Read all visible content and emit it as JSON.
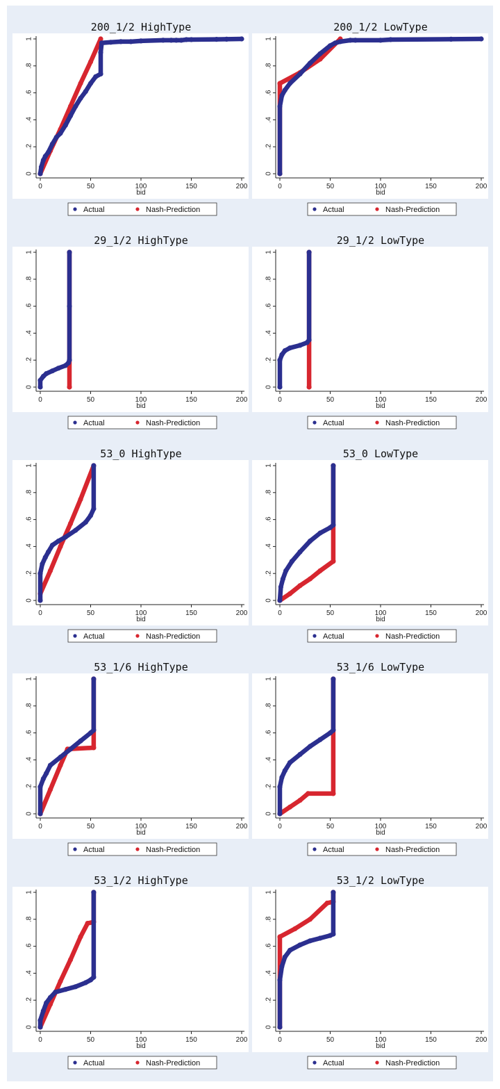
{
  "colors": {
    "actual": "#2b2f8f",
    "nash": "#d7262f",
    "panel_bg": "#ffffff",
    "figure_bg": "#e8eef7"
  },
  "chart_data": [
    {
      "type": "scatter",
      "title": "200_1/2 HighType",
      "xlabel": "bid",
      "xlim": [
        0,
        200
      ],
      "ylim": [
        0,
        1
      ],
      "xticks": [
        0,
        50,
        100,
        150,
        200
      ],
      "yticks": [
        0,
        0.2,
        0.4,
        0.6,
        0.8,
        1
      ],
      "ytick_labels": [
        "0",
        ".2",
        ".4",
        ".6",
        ".8",
        "1"
      ],
      "legend_placement": "bottom",
      "series": [
        {
          "name": "Actual",
          "points": [
            [
              0,
              0
            ],
            [
              1,
              0.05
            ],
            [
              3,
              0.1
            ],
            [
              5,
              0.13
            ],
            [
              8,
              0.16
            ],
            [
              12,
              0.22
            ],
            [
              16,
              0.27
            ],
            [
              20,
              0.3
            ],
            [
              25,
              0.36
            ],
            [
              30,
              0.43
            ],
            [
              35,
              0.5
            ],
            [
              40,
              0.56
            ],
            [
              45,
              0.61
            ],
            [
              50,
              0.67
            ],
            [
              55,
              0.72
            ],
            [
              60,
              0.74
            ],
            [
              60,
              0.9
            ],
            [
              61,
              0.97
            ],
            [
              70,
              0.975
            ],
            [
              80,
              0.98
            ],
            [
              90,
              0.98
            ],
            [
              100,
              0.985
            ],
            [
              122,
              0.99
            ],
            [
              130,
              0.99
            ],
            [
              135,
              0.99
            ],
            [
              140,
              0.99
            ],
            [
              145,
              0.995
            ],
            [
              150,
              0.995
            ],
            [
              175,
              0.997
            ],
            [
              185,
              0.998
            ],
            [
              200,
              1
            ]
          ]
        },
        {
          "name": "Nash-Prediction",
          "points": [
            [
              0,
              0
            ],
            [
              10,
              0.17
            ],
            [
              20,
              0.33
            ],
            [
              30,
              0.5
            ],
            [
              40,
              0.67
            ],
            [
              50,
              0.83
            ],
            [
              60,
              1
            ]
          ]
        }
      ]
    },
    {
      "type": "scatter",
      "title": "200_1/2 LowType",
      "xlabel": "bid",
      "xlim": [
        0,
        200
      ],
      "ylim": [
        0,
        1
      ],
      "xticks": [
        0,
        50,
        100,
        150,
        200
      ],
      "yticks": [
        0,
        0.2,
        0.4,
        0.6,
        0.8,
        1
      ],
      "ytick_labels": [
        "0",
        ".2",
        ".4",
        ".6",
        ".8",
        "1"
      ],
      "legend_placement": "bottom",
      "series": [
        {
          "name": "Actual",
          "points": [
            [
              0,
              0
            ],
            [
              0,
              0.5
            ],
            [
              2,
              0.58
            ],
            [
              5,
              0.62
            ],
            [
              10,
              0.67
            ],
            [
              20,
              0.74
            ],
            [
              30,
              0.82
            ],
            [
              40,
              0.89
            ],
            [
              50,
              0.95
            ],
            [
              55,
              0.97
            ],
            [
              60,
              0.98
            ],
            [
              70,
              0.99
            ],
            [
              75,
              0.99
            ],
            [
              100,
              0.99
            ],
            [
              110,
              0.995
            ],
            [
              170,
              0.998
            ],
            [
              200,
              1
            ]
          ]
        },
        {
          "name": "Nash-Prediction",
          "points": [
            [
              0,
              0
            ],
            [
              0,
              0.67
            ],
            [
              20,
              0.75
            ],
            [
              40,
              0.85
            ],
            [
              60,
              1
            ]
          ]
        }
      ]
    },
    {
      "type": "scatter",
      "title": "29_1/2 HighType",
      "xlabel": "bid",
      "xlim": [
        0,
        200
      ],
      "ylim": [
        0,
        1
      ],
      "xticks": [
        0,
        50,
        100,
        150,
        200
      ],
      "yticks": [
        0,
        0.2,
        0.4,
        0.6,
        0.8,
        1
      ],
      "ytick_labels": [
        "0",
        ".2",
        ".4",
        ".6",
        ".8",
        "1"
      ],
      "legend_placement": "bottom",
      "series": [
        {
          "name": "Actual",
          "points": [
            [
              0,
              0
            ],
            [
              0,
              0.05
            ],
            [
              3,
              0.08
            ],
            [
              6,
              0.1
            ],
            [
              12,
              0.12
            ],
            [
              18,
              0.14
            ],
            [
              25,
              0.16
            ],
            [
              28,
              0.18
            ],
            [
              29,
              0.2
            ],
            [
              29,
              0.6
            ],
            [
              29,
              1
            ]
          ]
        },
        {
          "name": "Nash-Prediction",
          "points": [
            [
              29,
              0
            ],
            [
              29,
              1
            ]
          ]
        }
      ]
    },
    {
      "type": "scatter",
      "title": "29_1/2 LowType",
      "xlabel": "bid",
      "xlim": [
        0,
        200
      ],
      "ylim": [
        0,
        1
      ],
      "xticks": [
        0,
        50,
        100,
        150,
        200
      ],
      "yticks": [
        0,
        0.2,
        0.4,
        0.6,
        0.8,
        1
      ],
      "ytick_labels": [
        "0",
        ".2",
        ".4",
        ".6",
        ".8",
        "1"
      ],
      "legend_placement": "bottom",
      "series": [
        {
          "name": "Actual",
          "points": [
            [
              0,
              0
            ],
            [
              0,
              0.2
            ],
            [
              2,
              0.24
            ],
            [
              5,
              0.27
            ],
            [
              10,
              0.29
            ],
            [
              20,
              0.31
            ],
            [
              27,
              0.33
            ],
            [
              29,
              0.35
            ],
            [
              29,
              1
            ]
          ]
        },
        {
          "name": "Nash-Prediction",
          "points": [
            [
              29,
              0
            ],
            [
              29,
              1
            ]
          ]
        }
      ]
    },
    {
      "type": "scatter",
      "title": "53_0 HighType",
      "xlabel": "bid",
      "xlim": [
        0,
        200
      ],
      "ylim": [
        0,
        1
      ],
      "xticks": [
        0,
        50,
        100,
        150,
        200
      ],
      "yticks": [
        0,
        0.2,
        0.4,
        0.6,
        0.8,
        1
      ],
      "ytick_labels": [
        "0",
        ".2",
        ".4",
        ".6",
        ".8",
        "1"
      ],
      "legend_placement": "bottom",
      "series": [
        {
          "name": "Actual",
          "points": [
            [
              0,
              0
            ],
            [
              0,
              0.2
            ],
            [
              2,
              0.27
            ],
            [
              5,
              0.32
            ],
            [
              8,
              0.36
            ],
            [
              12,
              0.41
            ],
            [
              18,
              0.44
            ],
            [
              25,
              0.47
            ],
            [
              35,
              0.52
            ],
            [
              45,
              0.58
            ],
            [
              50,
              0.63
            ],
            [
              53,
              0.68
            ],
            [
              53,
              1
            ]
          ]
        },
        {
          "name": "Nash-Prediction",
          "points": [
            [
              0,
              0.05
            ],
            [
              10,
              0.22
            ],
            [
              20,
              0.4
            ],
            [
              30,
              0.57
            ],
            [
              40,
              0.75
            ],
            [
              53,
              1
            ]
          ]
        }
      ]
    },
    {
      "type": "scatter",
      "title": "53_0 LowType",
      "xlabel": "bid",
      "xlim": [
        0,
        200
      ],
      "ylim": [
        0,
        1
      ],
      "xticks": [
        0,
        50,
        100,
        150,
        200
      ],
      "yticks": [
        0,
        0.2,
        0.4,
        0.6,
        0.8,
        1
      ],
      "ytick_labels": [
        "0",
        ".2",
        ".4",
        ".6",
        ".8",
        "1"
      ],
      "legend_placement": "bottom",
      "series": [
        {
          "name": "Actual",
          "points": [
            [
              0,
              0
            ],
            [
              1,
              0.1
            ],
            [
              3,
              0.16
            ],
            [
              6,
              0.22
            ],
            [
              12,
              0.29
            ],
            [
              20,
              0.36
            ],
            [
              30,
              0.44
            ],
            [
              40,
              0.5
            ],
            [
              50,
              0.54
            ],
            [
              53,
              0.56
            ],
            [
              53,
              1
            ]
          ]
        },
        {
          "name": "Nash-Prediction",
          "points": [
            [
              0,
              0
            ],
            [
              10,
              0.05
            ],
            [
              20,
              0.11
            ],
            [
              30,
              0.16
            ],
            [
              40,
              0.22
            ],
            [
              53,
              0.29
            ],
            [
              53,
              1
            ]
          ]
        }
      ]
    },
    {
      "type": "scatter",
      "title": "53_1/6 HighType",
      "xlabel": "bid",
      "xlim": [
        0,
        200
      ],
      "ylim": [
        0,
        1
      ],
      "xticks": [
        0,
        50,
        100,
        150,
        200
      ],
      "yticks": [
        0,
        0.2,
        0.4,
        0.6,
        0.8,
        1
      ],
      "ytick_labels": [
        "0",
        ".2",
        ".4",
        ".6",
        ".8",
        "1"
      ],
      "legend_placement": "bottom",
      "series": [
        {
          "name": "Actual",
          "points": [
            [
              0,
              0
            ],
            [
              0,
              0.2
            ],
            [
              3,
              0.26
            ],
            [
              6,
              0.3
            ],
            [
              10,
              0.36
            ],
            [
              20,
              0.42
            ],
            [
              30,
              0.48
            ],
            [
              40,
              0.54
            ],
            [
              50,
              0.6
            ],
            [
              53,
              0.62
            ],
            [
              53,
              1
            ]
          ]
        },
        {
          "name": "Nash-Prediction",
          "points": [
            [
              0,
              0
            ],
            [
              10,
              0.18
            ],
            [
              20,
              0.36
            ],
            [
              27,
              0.48
            ],
            [
              53,
              0.49
            ],
            [
              53,
              1
            ]
          ]
        }
      ]
    },
    {
      "type": "scatter",
      "title": "53_1/6 LowType",
      "xlabel": "bid",
      "xlim": [
        0,
        200
      ],
      "ylim": [
        0,
        1
      ],
      "xticks": [
        0,
        50,
        100,
        150,
        200
      ],
      "yticks": [
        0,
        0.2,
        0.4,
        0.6,
        0.8,
        1
      ],
      "ytick_labels": [
        "0",
        ".2",
        ".4",
        ".6",
        ".8",
        "1"
      ],
      "legend_placement": "bottom",
      "series": [
        {
          "name": "Actual",
          "points": [
            [
              0,
              0
            ],
            [
              0,
              0.2
            ],
            [
              2,
              0.27
            ],
            [
              5,
              0.32
            ],
            [
              10,
              0.38
            ],
            [
              20,
              0.44
            ],
            [
              30,
              0.5
            ],
            [
              40,
              0.55
            ],
            [
              50,
              0.6
            ],
            [
              53,
              0.62
            ],
            [
              53,
              1
            ]
          ]
        },
        {
          "name": "Nash-Prediction",
          "points": [
            [
              0,
              0
            ],
            [
              10,
              0.05
            ],
            [
              20,
              0.1
            ],
            [
              28,
              0.15
            ],
            [
              53,
              0.15
            ],
            [
              53,
              1
            ]
          ]
        }
      ]
    },
    {
      "type": "scatter",
      "title": "53_1/2 HighType",
      "xlabel": "bid",
      "xlim": [
        0,
        200
      ],
      "ylim": [
        0,
        1
      ],
      "xticks": [
        0,
        50,
        100,
        150,
        200
      ],
      "yticks": [
        0,
        0.2,
        0.4,
        0.6,
        0.8,
        1
      ],
      "ytick_labels": [
        "0",
        ".2",
        ".4",
        ".6",
        ".8",
        "1"
      ],
      "legend_placement": "bottom",
      "series": [
        {
          "name": "Actual",
          "points": [
            [
              0,
              0
            ],
            [
              0,
              0.05
            ],
            [
              3,
              0.12
            ],
            [
              6,
              0.18
            ],
            [
              10,
              0.22
            ],
            [
              15,
              0.26
            ],
            [
              25,
              0.28
            ],
            [
              35,
              0.3
            ],
            [
              45,
              0.33
            ],
            [
              50,
              0.35
            ],
            [
              53,
              0.37
            ],
            [
              53,
              1
            ]
          ]
        },
        {
          "name": "Nash-Prediction",
          "points": [
            [
              0,
              0
            ],
            [
              10,
              0.17
            ],
            [
              20,
              0.34
            ],
            [
              30,
              0.5
            ],
            [
              40,
              0.67
            ],
            [
              47,
              0.77
            ],
            [
              53,
              0.78
            ],
            [
              53,
              1
            ]
          ]
        }
      ]
    },
    {
      "type": "scatter",
      "title": "53_1/2 LowType",
      "xlabel": "bid",
      "xlim": [
        0,
        200
      ],
      "ylim": [
        0,
        1
      ],
      "xticks": [
        0,
        50,
        100,
        150,
        200
      ],
      "yticks": [
        0,
        0.2,
        0.4,
        0.6,
        0.8,
        1
      ],
      "ytick_labels": [
        "0",
        ".2",
        ".4",
        ".6",
        ".8",
        "1"
      ],
      "legend_placement": "bottom",
      "series": [
        {
          "name": "Actual",
          "points": [
            [
              0,
              0
            ],
            [
              0,
              0.35
            ],
            [
              2,
              0.45
            ],
            [
              5,
              0.52
            ],
            [
              10,
              0.57
            ],
            [
              20,
              0.61
            ],
            [
              30,
              0.64
            ],
            [
              40,
              0.66
            ],
            [
              50,
              0.68
            ],
            [
              53,
              0.69
            ],
            [
              53,
              1
            ]
          ]
        },
        {
          "name": "Nash-Prediction",
          "points": [
            [
              0,
              0
            ],
            [
              0,
              0.67
            ],
            [
              15,
              0.73
            ],
            [
              30,
              0.8
            ],
            [
              47,
              0.92
            ],
            [
              53,
              0.93
            ],
            [
              53,
              1
            ]
          ]
        }
      ]
    }
  ]
}
